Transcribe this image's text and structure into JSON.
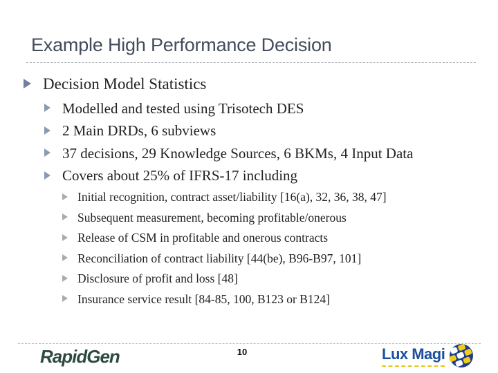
{
  "slide": {
    "title": "Example High Performance Decision",
    "bullets": [
      {
        "level": 1,
        "text": "Decision Model Statistics"
      },
      {
        "level": 2,
        "text": "Modelled and tested using Trisotech DES"
      },
      {
        "level": 2,
        "text": "2 Main DRDs, 6 subviews"
      },
      {
        "level": 2,
        "text": "37 decisions, 29 Knowledge Sources, 6 BKMs, 4 Input Data"
      },
      {
        "level": 2,
        "text": "Covers about 25% of IFRS-17 including"
      },
      {
        "level": 3,
        "text": "Initial recognition, contract asset/liability [16(a), 32, 36, 38, 47]"
      },
      {
        "level": 3,
        "text": "Subsequent measurement, becoming profitable/onerous"
      },
      {
        "level": 3,
        "text": "Release of CSM in profitable and onerous contracts"
      },
      {
        "level": 3,
        "text": "Reconciliation of contract liability [44(be), B96-B97, 101]"
      },
      {
        "level": 3,
        "text": "Disclosure of profit and loss [48]"
      },
      {
        "level": 3,
        "text": "Insurance service result [84-85, 100, B123 or B124]"
      }
    ]
  },
  "footer": {
    "page_number": "10",
    "rapidgen_logo_text": "RapidGen",
    "luxmagi_logo_text": "Lux Magi"
  },
  "colors": {
    "title": "#424c5c",
    "body_text": "#242121",
    "bullet_level1": "#71809f",
    "bullet_level2": "#8b9ab4",
    "bullet_level3": "#a7acb4",
    "dashed_rule": "#b3b6bb",
    "rapidgen_green": "#2d4a42",
    "luxmagi_blue": "#1c4f9f",
    "luxmagi_yellow": "#e8c617"
  }
}
